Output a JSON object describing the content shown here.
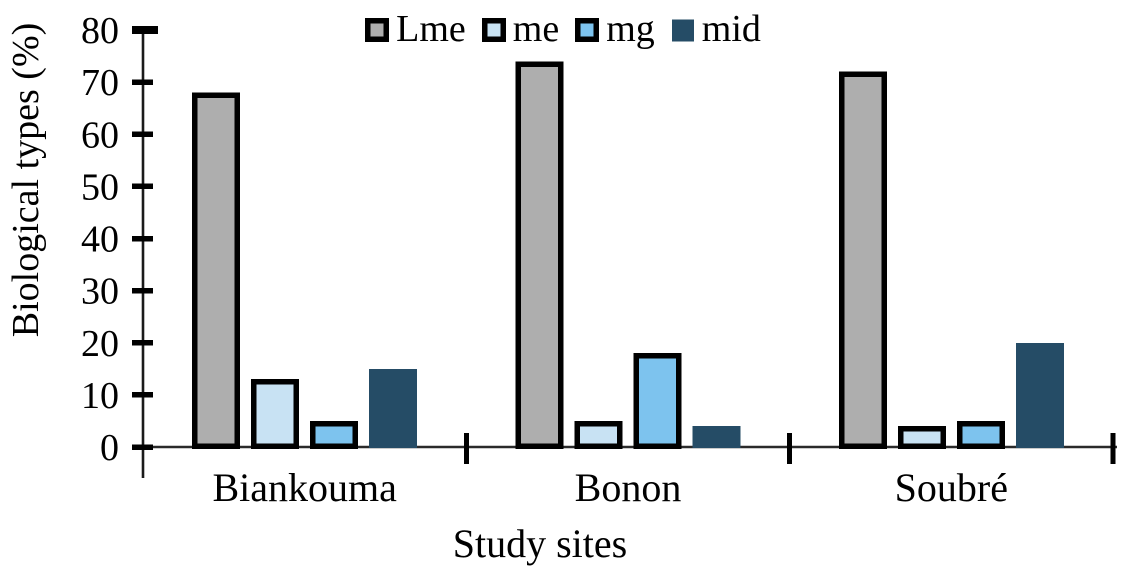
{
  "figure": {
    "background": "#ffffff",
    "text_color": "#000000",
    "axis_color": "#1a1a1a",
    "baseline_color": "#2a2a2a"
  },
  "chart_data": {
    "type": "bar",
    "title": "",
    "xlabel": "Study sites",
    "ylabel": "Biological types (%)",
    "categories": [
      "Biankouma",
      "Bonon",
      "Soubré"
    ],
    "series": [
      {
        "name": "Lme",
        "values": [
          68,
          74,
          72
        ],
        "fill": "#aeaeae",
        "stroke": "#000000",
        "bordered": true
      },
      {
        "name": "me",
        "values": [
          13,
          5,
          4
        ],
        "fill": "#c8e2f3",
        "stroke": "#000000",
        "bordered": true
      },
      {
        "name": "mg",
        "values": [
          5,
          18,
          5
        ],
        "fill": "#7dc3ee",
        "stroke": "#000000",
        "bordered": true
      },
      {
        "name": "mid",
        "values": [
          15,
          4,
          20
        ],
        "fill": "#254c66",
        "stroke": "none",
        "bordered": false
      }
    ],
    "yticks": [
      0,
      10,
      20,
      30,
      40,
      50,
      60,
      70,
      80
    ],
    "ylim": [
      0,
      80
    ],
    "grid": false,
    "legend_position": "top-center"
  }
}
